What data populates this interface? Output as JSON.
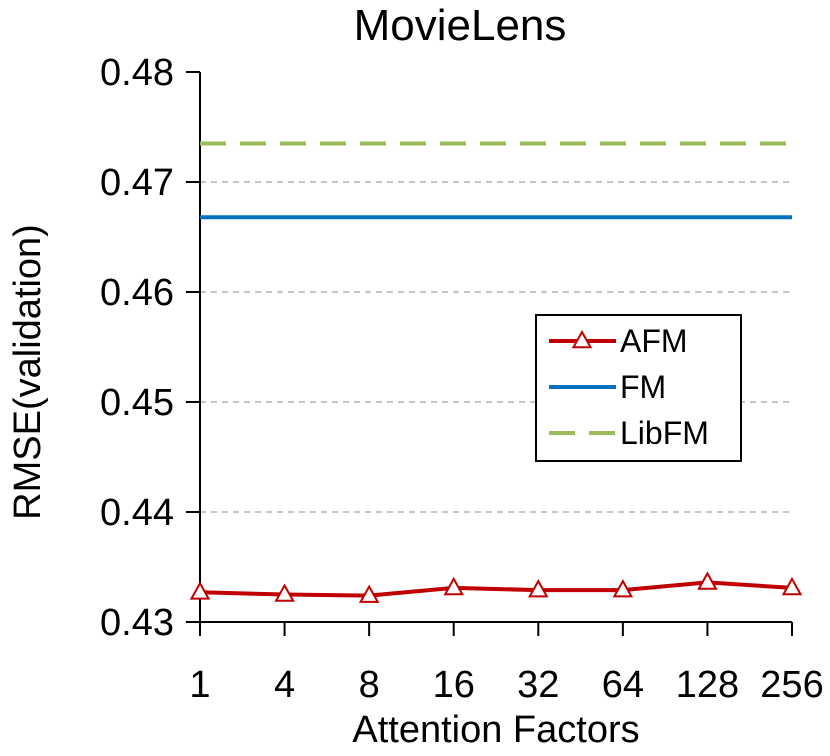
{
  "chart_data": {
    "type": "line",
    "title": "MovieLens",
    "xlabel": "Attention Factors",
    "ylabel": "RMSE(validation)",
    "categories": [
      "1",
      "4",
      "8",
      "16",
      "32",
      "64",
      "128",
      "256"
    ],
    "ylim": [
      0.43,
      0.48
    ],
    "yticks": [
      "0.43",
      "0.44",
      "0.45",
      "0.46",
      "0.47",
      "0.48"
    ],
    "grid": true,
    "legend_position": "right",
    "series": [
      {
        "name": "AFM",
        "values": [
          0.4327,
          0.4325,
          0.4324,
          0.4331,
          0.4329,
          0.4329,
          0.4336,
          0.4331
        ],
        "color": "#c00000",
        "style": "solid",
        "marker": "triangle-open"
      },
      {
        "name": "FM",
        "values": [
          0.4668,
          0.4668,
          0.4668,
          0.4668,
          0.4668,
          0.4668,
          0.4668,
          0.4668
        ],
        "color": "#0070c0",
        "style": "solid",
        "marker": "none"
      },
      {
        "name": "LibFM",
        "values": [
          0.4735,
          0.4735,
          0.4735,
          0.4735,
          0.4735,
          0.4735,
          0.4735,
          0.4735
        ],
        "color": "#9bbb59",
        "style": "dashed",
        "marker": "none"
      }
    ]
  }
}
